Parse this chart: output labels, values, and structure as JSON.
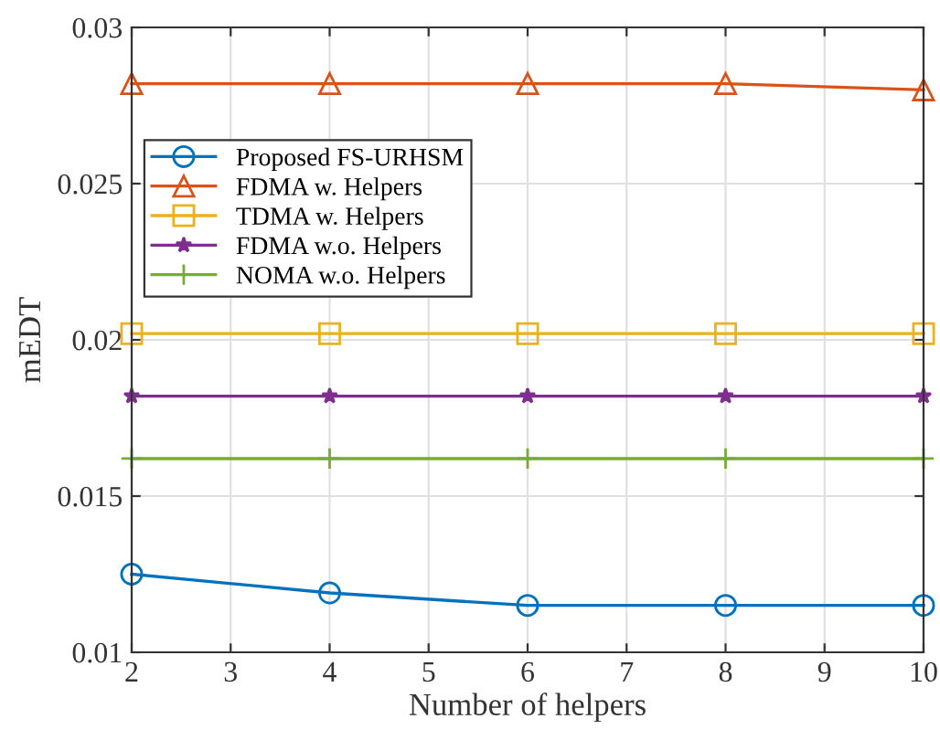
{
  "chart_data": {
    "type": "line",
    "xlabel": "Number of helpers",
    "ylabel": "mEDT",
    "x": [
      2,
      4,
      6,
      8,
      10
    ],
    "series": [
      {
        "name": "Proposed FS-URHSM",
        "color": "#0072bd",
        "marker": "circle",
        "values": [
          0.0125,
          0.0119,
          0.0115,
          0.0115,
          0.0115
        ]
      },
      {
        "name": "FDMA w. Helpers",
        "color": "#d95319",
        "marker": "triangle",
        "values": [
          0.0282,
          0.0282,
          0.0282,
          0.0282,
          0.028
        ]
      },
      {
        "name": "TDMA w. Helpers",
        "color": "#edb120",
        "marker": "square",
        "values": [
          0.0202,
          0.0202,
          0.0202,
          0.0202,
          0.0202
        ]
      },
      {
        "name": "FDMA w.o. Helpers",
        "color": "#7e2f8e",
        "marker": "star",
        "values": [
          0.0182,
          0.0182,
          0.0182,
          0.0182,
          0.0182
        ]
      },
      {
        "name": "NOMA w.o. Helpers",
        "color": "#77ac30",
        "marker": "cross",
        "values": [
          0.0162,
          0.0162,
          0.0162,
          0.0162,
          0.0162
        ]
      }
    ],
    "xlim": [
      2,
      10
    ],
    "xticks": [
      2,
      3,
      4,
      5,
      6,
      7,
      8,
      9,
      10
    ],
    "ylim": [
      0.01,
      0.03
    ],
    "yticks": [
      0.01,
      0.015,
      0.02,
      0.025,
      0.03
    ],
    "grid": true,
    "legend": "upper left",
    "line_style": "solid"
  }
}
